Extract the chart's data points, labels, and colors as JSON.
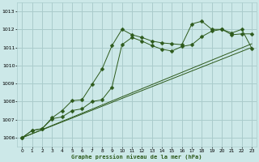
{
  "title": "Graphe pression niveau de la mer (hPa)",
  "background_color": "#cce8e8",
  "grid_color": "#aacccc",
  "line_color": "#2d5a1b",
  "xlim": [
    -0.5,
    23.5
  ],
  "ylim": [
    1005.5,
    1013.5
  ],
  "yticks": [
    1006,
    1007,
    1008,
    1009,
    1010,
    1011,
    1012,
    1013
  ],
  "xticks": [
    0,
    1,
    2,
    3,
    4,
    5,
    6,
    7,
    8,
    9,
    10,
    11,
    12,
    13,
    14,
    15,
    16,
    17,
    18,
    19,
    20,
    21,
    22,
    23
  ],
  "series": [
    {
      "x": [
        0,
        1,
        2,
        3,
        4,
        5,
        6,
        7,
        8,
        9,
        10,
        11,
        12,
        13,
        14,
        15,
        16,
        17,
        18,
        19,
        20,
        21,
        22,
        23
      ],
      "y": [
        1006.0,
        1006.4,
        1006.5,
        1007.1,
        1007.5,
        1008.05,
        1008.1,
        1008.95,
        1009.8,
        1011.1,
        1012.0,
        1011.7,
        1011.55,
        1011.35,
        1011.25,
        1011.2,
        1011.15,
        1012.3,
        1012.45,
        1012.0,
        1012.0,
        1011.8,
        1012.0,
        1010.95
      ],
      "marker": "D",
      "markersize": 2.5
    },
    {
      "x": [
        0,
        1,
        2,
        3,
        4,
        5,
        6,
        7,
        8,
        9,
        10,
        11,
        12,
        13,
        14,
        15,
        16,
        17,
        18,
        19,
        20,
        21,
        22,
        23
      ],
      "y": [
        1006.0,
        1006.4,
        1006.5,
        1007.05,
        1007.15,
        1007.5,
        1007.6,
        1008.0,
        1008.1,
        1008.8,
        1011.15,
        1011.55,
        1011.35,
        1011.1,
        1010.9,
        1010.8,
        1011.05,
        1011.15,
        1011.6,
        1011.9,
        1012.0,
        1011.7,
        1011.75,
        1011.75
      ],
      "marker": "D",
      "markersize": 2.5
    },
    {
      "x": [
        0,
        23
      ],
      "y": [
        1006.0,
        1011.0
      ],
      "marker": null,
      "markersize": 0
    },
    {
      "x": [
        0,
        23
      ],
      "y": [
        1006.0,
        1011.2
      ],
      "marker": null,
      "markersize": 0
    }
  ]
}
